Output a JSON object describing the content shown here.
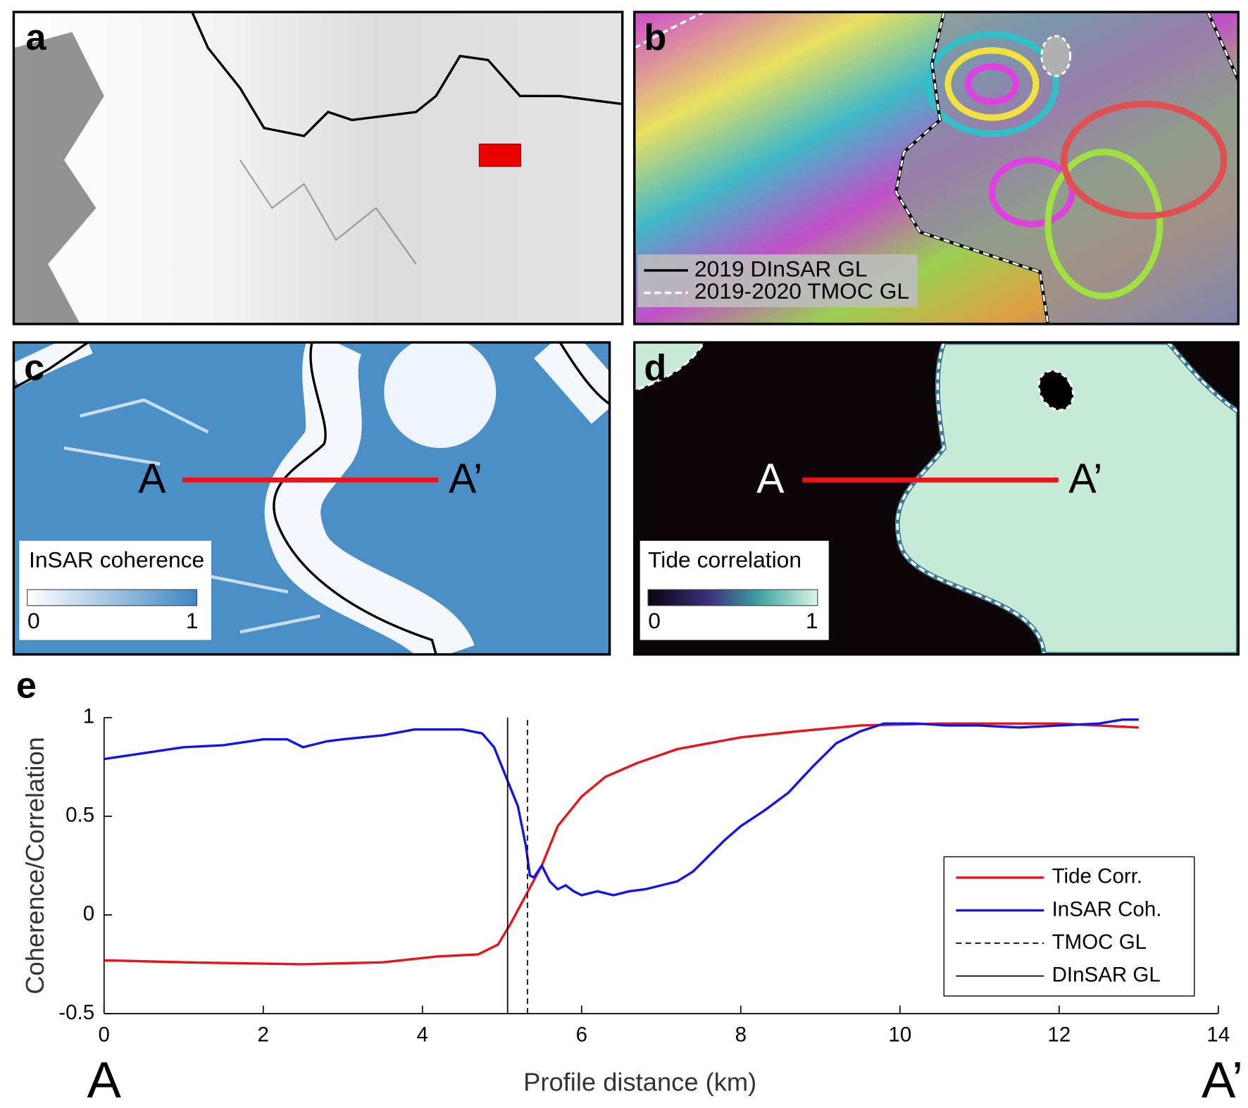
{
  "panels": {
    "a": {
      "label": "a"
    },
    "b": {
      "label": "b",
      "legend": [
        "2019 DInSAR GL",
        "2019-2020 TMOC GL"
      ]
    },
    "c": {
      "label": "c",
      "profile_start": "A",
      "profile_end": "A’",
      "colorbar": {
        "title": "InSAR coherence",
        "ticks": [
          0,
          1
        ]
      }
    },
    "d": {
      "label": "d",
      "profile_start": "A",
      "profile_end": "A’",
      "colorbar": {
        "title": "Tide correlation",
        "ticks": [
          0,
          1
        ]
      }
    }
  },
  "chart_data": {
    "type": "line",
    "panel_label": "e",
    "xlabel": "Profile distance (km)",
    "ylabel": "Coherence/Correlation",
    "x_start_label": "A",
    "x_end_label": "A’",
    "xlim": [
      0,
      14
    ],
    "xticks": [
      0,
      2,
      4,
      6,
      8,
      10,
      12,
      14
    ],
    "ylim": [
      -0.5,
      1
    ],
    "yticks": [
      -0.5,
      0,
      0.5,
      1
    ],
    "legend": "lower right",
    "series": [
      {
        "name": "Tide Corr.",
        "color": "#e8141c",
        "style": "solid",
        "x": [
          0,
          1,
          2.5,
          3.5,
          4.2,
          4.7,
          4.95,
          5.1,
          5.3,
          5.5,
          5.7,
          6,
          6.3,
          6.7,
          7.2,
          8,
          8.7,
          9.5,
          10.5,
          12,
          13
        ],
        "values": [
          -0.23,
          -0.24,
          -0.25,
          -0.24,
          -0.21,
          -0.2,
          -0.15,
          -0.05,
          0.1,
          0.25,
          0.45,
          0.6,
          0.7,
          0.77,
          0.84,
          0.9,
          0.93,
          0.96,
          0.97,
          0.97,
          0.95
        ]
      },
      {
        "name": "InSAR Coh.",
        "color": "#1414e8",
        "style": "solid",
        "x": [
          0,
          0.5,
          1,
          1.5,
          2,
          2.3,
          2.5,
          2.8,
          3,
          3.5,
          3.9,
          4.5,
          4.75,
          4.9,
          5.05,
          5.2,
          5.3,
          5.35,
          5.4,
          5.5,
          5.6,
          5.7,
          5.8,
          5.9,
          6,
          6.2,
          6.4,
          6.6,
          6.8,
          7,
          7.2,
          7.4,
          7.6,
          7.8,
          8,
          8.3,
          8.6,
          8.9,
          9.2,
          9.5,
          9.8,
          10.2,
          10.6,
          11,
          11.5,
          12,
          12.5,
          12.8,
          13
        ],
        "values": [
          0.79,
          0.82,
          0.85,
          0.86,
          0.89,
          0.89,
          0.85,
          0.88,
          0.89,
          0.91,
          0.94,
          0.94,
          0.92,
          0.85,
          0.7,
          0.55,
          0.35,
          0.2,
          0.19,
          0.25,
          0.17,
          0.13,
          0.15,
          0.12,
          0.1,
          0.12,
          0.1,
          0.12,
          0.13,
          0.15,
          0.17,
          0.22,
          0.3,
          0.38,
          0.45,
          0.53,
          0.62,
          0.75,
          0.87,
          0.93,
          0.97,
          0.97,
          0.96,
          0.96,
          0.95,
          0.96,
          0.97,
          0.99,
          0.99
        ]
      },
      {
        "name": "TMOC GL",
        "color": "#000000",
        "style": "dashed",
        "x": [
          5.32,
          5.32
        ],
        "values": [
          -0.5,
          1
        ]
      },
      {
        "name": "DInSAR GL",
        "color": "#000000",
        "style": "solid",
        "x": [
          5.07,
          5.07
        ],
        "values": [
          -0.5,
          1
        ]
      }
    ]
  }
}
